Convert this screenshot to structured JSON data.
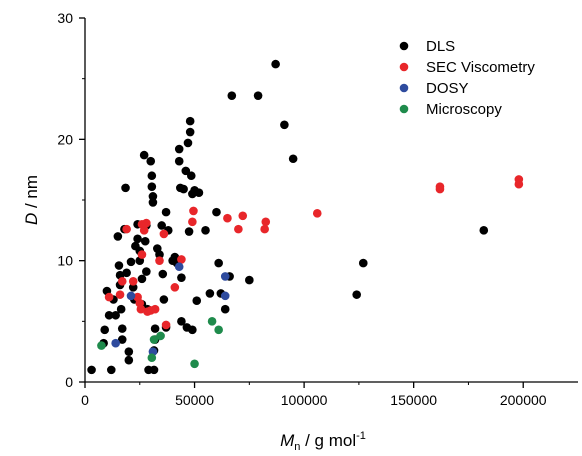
{
  "chart_data": {
    "type": "scatter",
    "xlim": [
      0,
      225000
    ],
    "ylim": [
      0,
      30
    ],
    "x_ticks": [
      0,
      50000,
      100000,
      150000,
      200000
    ],
    "x_tick_labels": [
      "0",
      "50000",
      "100000",
      "150000",
      "200000"
    ],
    "y_ticks": [
      0,
      10,
      20,
      30
    ],
    "y_tick_labels": [
      "0",
      "10",
      "20",
      "30"
    ],
    "xlabel": {
      "symbol": "M",
      "subscript": "n",
      "unit": " / g mol",
      "superscript": "-1"
    },
    "ylabel": {
      "symbol": "D",
      "unit": " / nm"
    },
    "legend_position": "top-right",
    "series": [
      {
        "name": "DLS",
        "color": "#000000",
        "points": [
          [
            3000,
            1.0
          ],
          [
            8500,
            3.2
          ],
          [
            9000,
            4.3
          ],
          [
            10000,
            7.5
          ],
          [
            11000,
            5.5
          ],
          [
            12000,
            1.0
          ],
          [
            13000,
            6.8
          ],
          [
            14000,
            5.5
          ],
          [
            15000,
            12.0
          ],
          [
            15500,
            9.6
          ],
          [
            16000,
            8.8
          ],
          [
            16000,
            8.0
          ],
          [
            16500,
            6.0
          ],
          [
            17000,
            4.4
          ],
          [
            17000,
            3.5
          ],
          [
            18000,
            12.6
          ],
          [
            18500,
            16.0
          ],
          [
            19000,
            9.0
          ],
          [
            20000,
            2.5
          ],
          [
            20000,
            1.8
          ],
          [
            21000,
            9.9
          ],
          [
            22000,
            7.8
          ],
          [
            22500,
            6.8
          ],
          [
            23000,
            11.2
          ],
          [
            24000,
            13.0
          ],
          [
            24000,
            11.8
          ],
          [
            25000,
            10.8
          ],
          [
            25000,
            10.0
          ],
          [
            26000,
            8.5
          ],
          [
            26000,
            6.4
          ],
          [
            27000,
            18.7
          ],
          [
            27500,
            11.6
          ],
          [
            28000,
            12.9
          ],
          [
            28000,
            9.1
          ],
          [
            28500,
            6.0
          ],
          [
            29000,
            1.0
          ],
          [
            30000,
            18.2
          ],
          [
            30500,
            17.0
          ],
          [
            30500,
            16.1
          ],
          [
            31000,
            15.3
          ],
          [
            31000,
            14.8
          ],
          [
            31500,
            1.0
          ],
          [
            31500,
            2.6
          ],
          [
            32000,
            3.5
          ],
          [
            32000,
            4.4
          ],
          [
            33000,
            11.0
          ],
          [
            34000,
            10.5
          ],
          [
            35000,
            12.9
          ],
          [
            35500,
            8.9
          ],
          [
            36000,
            6.8
          ],
          [
            37000,
            14.0
          ],
          [
            37000,
            4.5
          ],
          [
            38000,
            12.5
          ],
          [
            40000,
            10.0
          ],
          [
            41000,
            10.3
          ],
          [
            42000,
            9.8
          ],
          [
            43000,
            19.2
          ],
          [
            43000,
            18.2
          ],
          [
            43500,
            16.0
          ],
          [
            44000,
            8.6
          ],
          [
            44000,
            5.0
          ],
          [
            45000,
            15.9
          ],
          [
            46000,
            17.4
          ],
          [
            46500,
            4.5
          ],
          [
            47000,
            19.7
          ],
          [
            47500,
            12.4
          ],
          [
            48000,
            20.6
          ],
          [
            48000,
            21.5
          ],
          [
            48500,
            17.0
          ],
          [
            49000,
            15.5
          ],
          [
            49000,
            4.3
          ],
          [
            50000,
            15.8
          ],
          [
            51000,
            6.7
          ],
          [
            52000,
            15.6
          ],
          [
            55000,
            12.5
          ],
          [
            57000,
            7.3
          ],
          [
            60000,
            14.0
          ],
          [
            61000,
            9.8
          ],
          [
            62000,
            7.3
          ],
          [
            64000,
            6.0
          ],
          [
            66000,
            8.7
          ],
          [
            67000,
            23.6
          ],
          [
            75000,
            8.4
          ],
          [
            79000,
            23.6
          ],
          [
            87000,
            26.2
          ],
          [
            91000,
            21.2
          ],
          [
            95000,
            18.4
          ],
          [
            124000,
            7.2
          ],
          [
            127000,
            9.8
          ],
          [
            182000,
            12.5
          ]
        ]
      },
      {
        "name": "SEC Viscometry",
        "color": "#e8262a",
        "points": [
          [
            11000,
            7.0
          ],
          [
            16000,
            7.2
          ],
          [
            17000,
            8.3
          ],
          [
            19000,
            12.6
          ],
          [
            22000,
            8.3
          ],
          [
            24000,
            7.0
          ],
          [
            25000,
            6.5
          ],
          [
            25500,
            6.0
          ],
          [
            26000,
            10.5
          ],
          [
            26000,
            13.0
          ],
          [
            27000,
            12.5
          ],
          [
            28000,
            13.1
          ],
          [
            28500,
            5.8
          ],
          [
            30000,
            5.9
          ],
          [
            32000,
            6.0
          ],
          [
            34000,
            10.0
          ],
          [
            36000,
            12.2
          ],
          [
            37000,
            4.7
          ],
          [
            41000,
            7.8
          ],
          [
            44000,
            10.1
          ],
          [
            49000,
            13.2
          ],
          [
            49500,
            14.1
          ],
          [
            65000,
            13.5
          ],
          [
            70000,
            12.6
          ],
          [
            72000,
            13.7
          ],
          [
            82000,
            12.6
          ],
          [
            82500,
            13.2
          ],
          [
            106000,
            13.9
          ],
          [
            162000,
            15.9
          ],
          [
            162000,
            16.1
          ],
          [
            198000,
            16.7
          ],
          [
            198000,
            16.3
          ]
        ]
      },
      {
        "name": "DOSY",
        "color": "#2e4b9e",
        "points": [
          [
            14000,
            3.2
          ],
          [
            21000,
            7.1
          ],
          [
            31000,
            2.5
          ],
          [
            43000,
            9.5
          ],
          [
            64000,
            8.7
          ],
          [
            64000,
            7.1
          ]
        ]
      },
      {
        "name": "Microscopy",
        "color": "#1f8b4c",
        "points": [
          [
            7500,
            3.0
          ],
          [
            30500,
            2.0
          ],
          [
            31500,
            3.5
          ],
          [
            34500,
            3.8
          ],
          [
            58000,
            5.0
          ],
          [
            61000,
            4.3
          ],
          [
            50000,
            1.5
          ]
        ]
      }
    ]
  }
}
